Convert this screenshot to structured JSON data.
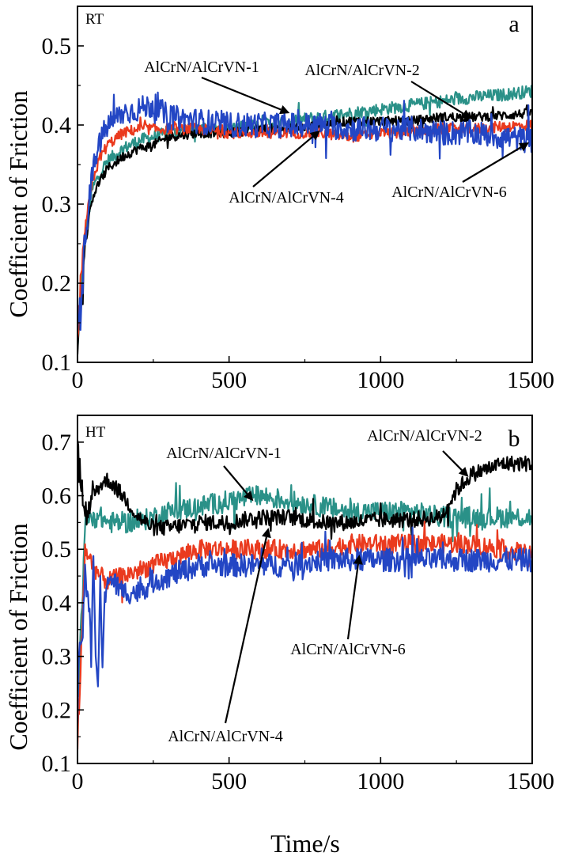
{
  "figure": {
    "xlabel": "Time/s",
    "ylabel": "Coefficient of Friction"
  },
  "colors": {
    "AlCrN/AlCrVN-1": "#2a9188",
    "AlCrN/AlCrVN-2": "#000000",
    "AlCrN/AlCrVN-4": "#ea3a1e",
    "AlCrN/AlCrVN-6": "#2346c4"
  },
  "chart_data": [
    {
      "type": "line",
      "panel_letter": "a",
      "condition": "RT",
      "xlabel": "",
      "ylabel": "Coefficient of Friction",
      "xlim": [
        0,
        1500
      ],
      "ylim": [
        0.1,
        0.55
      ],
      "xticks": [
        0,
        500,
        1000,
        1500
      ],
      "yticks": [
        0.1,
        0.2,
        0.3,
        0.4,
        0.5
      ],
      "x": [
        0,
        25,
        50,
        75,
        100,
        150,
        200,
        250,
        300,
        400,
        500,
        600,
        700,
        800,
        900,
        1000,
        1100,
        1200,
        1300,
        1400,
        1500
      ],
      "series": [
        {
          "name": "AlCrN/AlCrVN-1",
          "noise": 0.008,
          "values": [
            0.11,
            0.26,
            0.32,
            0.34,
            0.355,
            0.37,
            0.38,
            0.385,
            0.39,
            0.395,
            0.395,
            0.4,
            0.405,
            0.41,
            0.415,
            0.42,
            0.425,
            0.43,
            0.435,
            0.438,
            0.443
          ]
        },
        {
          "name": "AlCrN/AlCrVN-2",
          "noise": 0.006,
          "values": [
            0.12,
            0.25,
            0.31,
            0.33,
            0.345,
            0.36,
            0.37,
            0.375,
            0.385,
            0.39,
            0.39,
            0.395,
            0.395,
            0.4,
            0.405,
            0.405,
            0.405,
            0.41,
            0.41,
            0.412,
            0.415
          ]
        },
        {
          "name": "AlCrN/AlCrVN-4",
          "noise": 0.007,
          "values": [
            0.13,
            0.27,
            0.33,
            0.36,
            0.375,
            0.39,
            0.395,
            0.395,
            0.395,
            0.395,
            0.39,
            0.39,
            0.39,
            0.39,
            0.385,
            0.39,
            0.39,
            0.395,
            0.395,
            0.398,
            0.4
          ]
        },
        {
          "name": "AlCrN/AlCrVN-6",
          "noise": 0.016,
          "values": [
            0.12,
            0.26,
            0.34,
            0.38,
            0.4,
            0.415,
            0.42,
            0.425,
            0.41,
            0.405,
            0.4,
            0.4,
            0.4,
            0.4,
            0.395,
            0.395,
            0.395,
            0.39,
            0.39,
            0.385,
            0.38
          ]
        }
      ],
      "annotations": [
        {
          "text": "AlCrN/AlCrVN-1",
          "series": "AlCrN/AlCrVN-1",
          "points_to": [
            700,
            0.415
          ]
        },
        {
          "text": "AlCrN/AlCrVN-2",
          "series": "AlCrN/AlCrVN-2",
          "points_to": [
            1300,
            0.408
          ]
        },
        {
          "text": "AlCrN/AlCrVN-4",
          "series": "AlCrN/AlCrVN-4",
          "points_to": [
            800,
            0.393
          ]
        },
        {
          "text": "AlCrN/AlCrVN-6",
          "series": "AlCrN/AlCrVN-6",
          "points_to": [
            1490,
            0.378
          ]
        }
      ]
    },
    {
      "type": "line",
      "panel_letter": "b",
      "condition": "HT",
      "xlabel": "Time/s",
      "ylabel": "Coefficient of Friction",
      "xlim": [
        0,
        1500
      ],
      "ylim": [
        0.1,
        0.75
      ],
      "xticks": [
        0,
        500,
        1000,
        1500
      ],
      "yticks": [
        0.1,
        0.2,
        0.3,
        0.4,
        0.5,
        0.6,
        0.7
      ],
      "x": [
        0,
        25,
        50,
        75,
        100,
        150,
        200,
        250,
        300,
        400,
        500,
        600,
        700,
        800,
        900,
        1000,
        1100,
        1200,
        1250,
        1300,
        1400,
        1500
      ],
      "series": [
        {
          "name": "AlCrN/AlCrVN-1",
          "noise": 0.02,
          "values": [
            0.2,
            0.55,
            0.56,
            0.56,
            0.55,
            0.55,
            0.55,
            0.56,
            0.57,
            0.58,
            0.59,
            0.6,
            0.59,
            0.58,
            0.57,
            0.57,
            0.57,
            0.56,
            0.56,
            0.56,
            0.56,
            0.56
          ]
        },
        {
          "name": "AlCrN/AlCrVN-2",
          "noise": 0.015,
          "values": [
            0.68,
            0.55,
            0.6,
            0.62,
            0.63,
            0.6,
            0.56,
            0.54,
            0.54,
            0.55,
            0.55,
            0.56,
            0.56,
            0.55,
            0.55,
            0.555,
            0.555,
            0.56,
            0.61,
            0.64,
            0.66,
            0.66
          ]
        },
        {
          "name": "AlCrN/AlCrVN-4",
          "noise": 0.018,
          "values": [
            0.12,
            0.5,
            0.47,
            0.45,
            0.44,
            0.45,
            0.46,
            0.47,
            0.48,
            0.5,
            0.5,
            0.5,
            0.5,
            0.5,
            0.51,
            0.51,
            0.51,
            0.51,
            0.51,
            0.51,
            0.5,
            0.49
          ]
        },
        {
          "name": "AlCrN/AlCrVN-6",
          "noise": 0.022,
          "values": [
            0.2,
            0.45,
            0.32,
            0.35,
            0.45,
            0.42,
            0.42,
            0.44,
            0.45,
            0.47,
            0.47,
            0.47,
            0.47,
            0.48,
            0.48,
            0.48,
            0.48,
            0.48,
            0.48,
            0.48,
            0.48,
            0.48
          ]
        }
      ],
      "spikes": [
        {
          "series": "AlCrN/AlCrVN-6",
          "x": [
            45,
            52,
            60,
            68,
            75,
            82,
            90
          ],
          "values": [
            0.28,
            0.5,
            0.3,
            0.24,
            0.45,
            0.27,
            0.42
          ]
        }
      ],
      "annotations": [
        {
          "text": "AlCrN/AlCrVN-1",
          "series": "AlCrN/AlCrVN-1",
          "points_to": [
            580,
            0.59
          ]
        },
        {
          "text": "AlCrN/AlCrVN-2",
          "series": "AlCrN/AlCrVN-2",
          "points_to": [
            1290,
            0.635
          ]
        },
        {
          "text": "AlCrN/AlCrVN-4",
          "series": "AlCrN/AlCrVN-4",
          "points_to": [
            630,
            0.54
          ]
        },
        {
          "text": "AlCrN/AlCrVN-6",
          "series": "AlCrN/AlCrVN-6",
          "points_to": [
            930,
            0.49
          ]
        }
      ]
    }
  ]
}
